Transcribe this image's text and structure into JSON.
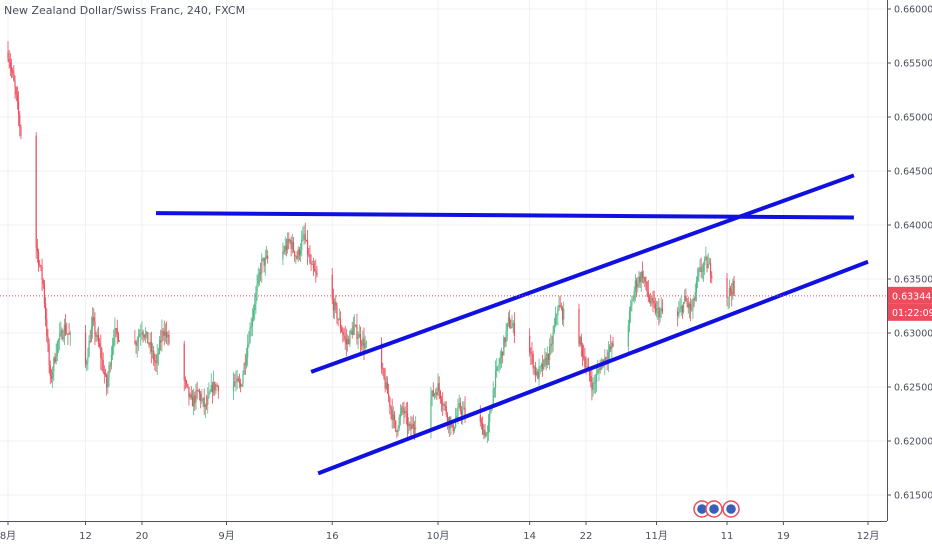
{
  "symbol_title": "New Zealand Dollar/Swiss Franc, 240, FXCM",
  "colors": {
    "up": "#53b987",
    "down": "#eb4d5c",
    "trendline": "#1010e0",
    "price_line": "#eb4d5c",
    "grid": "#eef1f4",
    "axis_text": "#4a4f5a"
  },
  "chart_data": {
    "type": "candlestick",
    "instrument": "New Zealand Dollar/Swiss Franc",
    "timeframe": "240",
    "source": "FXCM",
    "y_ticks": [
      "0.66000",
      "0.65500",
      "0.65000",
      "0.64500",
      "0.64000",
      "0.63500",
      "0.63000",
      "0.62500",
      "0.62000",
      "0.61500"
    ],
    "y_range": [
      0.6135,
      0.6605
    ],
    "x_ticks": [
      "8月",
      "12",
      "20",
      "9月",
      "16",
      "10月",
      "14",
      "22",
      "11月",
      "11",
      "19",
      "12月"
    ],
    "x_tick_dates": [
      "2019-08-01",
      "2019-08-12",
      "2019-08-20",
      "2019-09-01",
      "2019-09-16",
      "2019-10-01",
      "2019-10-14",
      "2019-10-22",
      "2019-11-01",
      "2019-11-11",
      "2019-11-19",
      "2019-12-01"
    ],
    "last_price": "0.63344",
    "countdown": "01:22:09",
    "price_path": [
      [
        "2019-08-01",
        0.656
      ],
      [
        "2019-08-02",
        0.6525
      ],
      [
        "2019-08-05",
        0.638
      ],
      [
        "2019-08-06",
        0.6345
      ],
      [
        "2019-08-07",
        0.6255
      ],
      [
        "2019-08-08",
        0.629
      ],
      [
        "2019-08-09",
        0.6305
      ],
      [
        "2019-08-12",
        0.627
      ],
      [
        "2019-08-13",
        0.631
      ],
      [
        "2019-08-14",
        0.6285
      ],
      [
        "2019-08-15",
        0.625
      ],
      [
        "2019-08-16",
        0.63
      ],
      [
        "2019-08-19",
        0.629
      ],
      [
        "2019-08-20",
        0.6305
      ],
      [
        "2019-08-21",
        0.629
      ],
      [
        "2019-08-22",
        0.627
      ],
      [
        "2019-08-23",
        0.6305
      ],
      [
        "2019-08-26",
        0.6255
      ],
      [
        "2019-08-27",
        0.6235
      ],
      [
        "2019-08-28",
        0.6245
      ],
      [
        "2019-08-29",
        0.623
      ],
      [
        "2019-08-30",
        0.625
      ],
      [
        "2019-09-02",
        0.6255
      ],
      [
        "2019-09-03",
        0.625
      ],
      [
        "2019-09-04",
        0.629
      ],
      [
        "2019-09-05",
        0.633
      ],
      [
        "2019-09-06",
        0.6365
      ],
      [
        "2019-09-09",
        0.6375
      ],
      [
        "2019-09-10",
        0.6385
      ],
      [
        "2019-09-11",
        0.637
      ],
      [
        "2019-09-12",
        0.639
      ],
      [
        "2019-09-13",
        0.636
      ],
      [
        "2019-09-16",
        0.633
      ],
      [
        "2019-09-17",
        0.631
      ],
      [
        "2019-09-18",
        0.629
      ],
      [
        "2019-09-19",
        0.6305
      ],
      [
        "2019-09-20",
        0.6295
      ],
      [
        "2019-09-23",
        0.6265
      ],
      [
        "2019-09-24",
        0.624
      ],
      [
        "2019-09-25",
        0.621
      ],
      [
        "2019-09-26",
        0.623
      ],
      [
        "2019-09-27",
        0.621
      ],
      [
        "2019-09-30",
        0.624
      ],
      [
        "2019-10-01",
        0.625
      ],
      [
        "2019-10-02",
        0.623
      ],
      [
        "2019-10-03",
        0.621
      ],
      [
        "2019-10-04",
        0.623
      ],
      [
        "2019-10-07",
        0.6215
      ],
      [
        "2019-10-08",
        0.6205
      ],
      [
        "2019-10-09",
        0.6255
      ],
      [
        "2019-10-10",
        0.628
      ],
      [
        "2019-10-11",
        0.631
      ],
      [
        "2019-10-14",
        0.6285
      ],
      [
        "2019-10-15",
        0.626
      ],
      [
        "2019-10-16",
        0.627
      ],
      [
        "2019-10-17",
        0.6285
      ],
      [
        "2019-10-18",
        0.6325
      ],
      [
        "2019-10-21",
        0.6295
      ],
      [
        "2019-10-22",
        0.627
      ],
      [
        "2019-10-23",
        0.625
      ],
      [
        "2019-10-24",
        0.627
      ],
      [
        "2019-10-25",
        0.628
      ],
      [
        "2019-10-28",
        0.631
      ],
      [
        "2019-10-29",
        0.6345
      ],
      [
        "2019-10-30",
        0.6355
      ],
      [
        "2019-10-31",
        0.633
      ],
      [
        "2019-11-01",
        0.632
      ],
      [
        "2019-11-04",
        0.6315
      ],
      [
        "2019-11-05",
        0.633
      ],
      [
        "2019-11-06",
        0.632
      ],
      [
        "2019-11-07",
        0.6355
      ],
      [
        "2019-11-08",
        0.6365
      ],
      [
        "2019-11-11",
        0.6335
      ],
      [
        "2019-11-12",
        0.6344
      ]
    ],
    "trendlines": [
      {
        "start": [
          "2019-08-22",
          0.6411
        ],
        "end": [
          "2019-11-29",
          0.6407
        ]
      },
      {
        "start": [
          "2019-09-13",
          0.6264
        ],
        "end": [
          "2019-11-29",
          0.6446
        ]
      },
      {
        "start": [
          "2019-09-14",
          0.617
        ],
        "end": [
          "2019-12-01",
          0.6366
        ]
      }
    ],
    "grid": true,
    "price_line_dotted": true
  }
}
